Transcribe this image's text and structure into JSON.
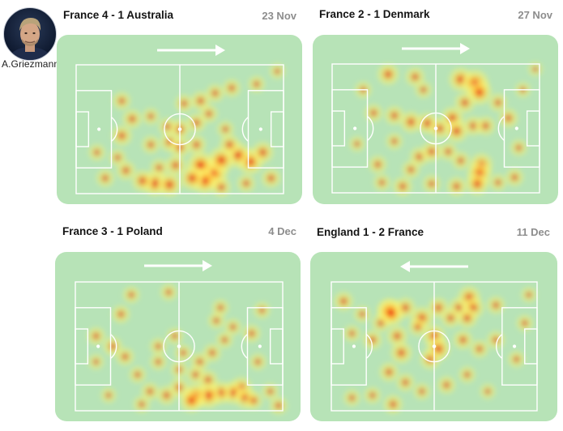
{
  "player": {
    "name": "A.Griezmann",
    "icon": "player-photo"
  },
  "colors": {
    "pitch": "#b7e3b7",
    "lines": "#ffffff",
    "heat_low": "#fff36a",
    "heat_mid": "#ffae2a",
    "heat_high": "#e8200e"
  },
  "matches": [
    {
      "title": "France 4 - 1 Australia",
      "date": "23 Nov",
      "attack_direction": "right",
      "heat": [
        [
          0.52,
          0.3,
          0.35
        ],
        [
          0.6,
          0.28,
          0.4
        ],
        [
          0.67,
          0.22,
          0.35
        ],
        [
          0.75,
          0.18,
          0.35
        ],
        [
          0.87,
          0.15,
          0.3
        ],
        [
          0.97,
          0.05,
          0.25
        ],
        [
          0.5,
          0.5,
          0.45
        ],
        [
          0.58,
          0.45,
          0.4
        ],
        [
          0.64,
          0.38,
          0.35
        ],
        [
          0.44,
          0.48,
          0.35
        ],
        [
          0.45,
          0.6,
          0.4
        ],
        [
          0.36,
          0.62,
          0.35
        ],
        [
          0.22,
          0.55,
          0.45
        ],
        [
          0.27,
          0.42,
          0.4
        ],
        [
          0.22,
          0.28,
          0.35
        ],
        [
          0.36,
          0.4,
          0.3
        ],
        [
          0.84,
          0.75,
          0.7
        ],
        [
          0.78,
          0.7,
          0.65
        ],
        [
          0.66,
          0.84,
          0.85
        ],
        [
          0.6,
          0.78,
          0.75
        ],
        [
          0.7,
          0.74,
          0.7
        ],
        [
          0.62,
          0.9,
          0.7
        ],
        [
          0.56,
          0.88,
          0.6
        ],
        [
          0.48,
          0.78,
          0.45
        ],
        [
          0.4,
          0.8,
          0.35
        ],
        [
          0.38,
          0.92,
          0.65
        ],
        [
          0.45,
          0.93,
          0.6
        ],
        [
          0.32,
          0.9,
          0.5
        ],
        [
          0.24,
          0.82,
          0.4
        ],
        [
          0.14,
          0.88,
          0.35
        ],
        [
          0.9,
          0.68,
          0.5
        ],
        [
          0.94,
          0.88,
          0.4
        ],
        [
          0.82,
          0.92,
          0.35
        ],
        [
          0.1,
          0.68,
          0.3
        ],
        [
          0.2,
          0.72,
          0.3
        ],
        [
          0.74,
          0.62,
          0.45
        ],
        [
          0.7,
          0.95,
          0.4
        ],
        [
          0.58,
          0.62,
          0.4
        ],
        [
          0.5,
          0.64,
          0.45
        ],
        [
          0.72,
          0.5,
          0.3
        ]
      ]
    },
    {
      "title": "France 2 - 1 Denmark",
      "date": "27 Nov",
      "attack_direction": "right",
      "heat": [
        [
          0.27,
          0.08,
          0.5
        ],
        [
          0.4,
          0.1,
          0.4
        ],
        [
          0.62,
          0.12,
          0.6
        ],
        [
          0.69,
          0.15,
          0.75
        ],
        [
          0.71,
          0.22,
          0.65
        ],
        [
          0.64,
          0.3,
          0.45
        ],
        [
          0.15,
          0.2,
          0.3
        ],
        [
          0.2,
          0.38,
          0.35
        ],
        [
          0.3,
          0.4,
          0.4
        ],
        [
          0.38,
          0.45,
          0.5
        ],
        [
          0.46,
          0.46,
          0.5
        ],
        [
          0.52,
          0.5,
          0.45
        ],
        [
          0.58,
          0.42,
          0.55
        ],
        [
          0.6,
          0.52,
          0.55
        ],
        [
          0.68,
          0.48,
          0.4
        ],
        [
          0.8,
          0.3,
          0.35
        ],
        [
          0.85,
          0.42,
          0.4
        ],
        [
          0.9,
          0.65,
          0.3
        ],
        [
          0.74,
          0.48,
          0.4
        ],
        [
          0.3,
          0.6,
          0.3
        ],
        [
          0.22,
          0.78,
          0.35
        ],
        [
          0.42,
          0.72,
          0.4
        ],
        [
          0.38,
          0.82,
          0.35
        ],
        [
          0.48,
          0.68,
          0.45
        ],
        [
          0.56,
          0.68,
          0.35
        ],
        [
          0.62,
          0.75,
          0.35
        ],
        [
          0.72,
          0.78,
          0.55
        ],
        [
          0.71,
          0.85,
          0.65
        ],
        [
          0.7,
          0.93,
          0.55
        ],
        [
          0.6,
          0.95,
          0.4
        ],
        [
          0.48,
          0.93,
          0.35
        ],
        [
          0.34,
          0.95,
          0.4
        ],
        [
          0.24,
          0.92,
          0.3
        ],
        [
          0.88,
          0.88,
          0.35
        ],
        [
          0.8,
          0.92,
          0.3
        ],
        [
          0.12,
          0.62,
          0.25
        ],
        [
          0.44,
          0.2,
          0.3
        ],
        [
          0.98,
          0.04,
          0.2
        ],
        [
          0.92,
          0.2,
          0.25
        ]
      ]
    },
    {
      "title": "France 3 - 1 Poland",
      "date": "4 Dec",
      "attack_direction": "right",
      "heat": [
        [
          0.22,
          0.25,
          0.35
        ],
        [
          0.27,
          0.1,
          0.3
        ],
        [
          0.45,
          0.08,
          0.3
        ],
        [
          0.1,
          0.42,
          0.35
        ],
        [
          0.18,
          0.5,
          0.4
        ],
        [
          0.24,
          0.58,
          0.35
        ],
        [
          0.3,
          0.72,
          0.3
        ],
        [
          0.4,
          0.5,
          0.3
        ],
        [
          0.48,
          0.42,
          0.3
        ],
        [
          0.52,
          0.55,
          0.3
        ],
        [
          0.6,
          0.62,
          0.35
        ],
        [
          0.66,
          0.55,
          0.35
        ],
        [
          0.72,
          0.45,
          0.3
        ],
        [
          0.68,
          0.3,
          0.3
        ],
        [
          0.7,
          0.2,
          0.3
        ],
        [
          0.76,
          0.35,
          0.3
        ],
        [
          0.85,
          0.4,
          0.35
        ],
        [
          0.9,
          0.22,
          0.3
        ],
        [
          0.88,
          0.62,
          0.3
        ],
        [
          0.94,
          0.85,
          0.3
        ],
        [
          0.98,
          0.96,
          0.35
        ],
        [
          0.8,
          0.82,
          0.5
        ],
        [
          0.76,
          0.86,
          0.55
        ],
        [
          0.7,
          0.86,
          0.55
        ],
        [
          0.64,
          0.88,
          0.7
        ],
        [
          0.58,
          0.88,
          0.6
        ],
        [
          0.56,
          0.92,
          0.6
        ],
        [
          0.5,
          0.82,
          0.4
        ],
        [
          0.44,
          0.88,
          0.4
        ],
        [
          0.36,
          0.85,
          0.35
        ],
        [
          0.32,
          0.95,
          0.3
        ],
        [
          0.16,
          0.88,
          0.25
        ],
        [
          0.58,
          0.72,
          0.35
        ],
        [
          0.64,
          0.76,
          0.4
        ],
        [
          0.82,
          0.9,
          0.5
        ],
        [
          0.86,
          0.92,
          0.35
        ],
        [
          0.5,
          0.68,
          0.3
        ],
        [
          0.4,
          0.62,
          0.3
        ],
        [
          0.1,
          0.62,
          0.25
        ]
      ]
    },
    {
      "title": "England 1 - 2 France",
      "date": "11 Dec",
      "attack_direction": "left",
      "heat": [
        [
          0.06,
          0.15,
          0.4
        ],
        [
          0.15,
          0.25,
          0.3
        ],
        [
          0.28,
          0.22,
          0.6
        ],
        [
          0.29,
          0.24,
          0.75
        ],
        [
          0.36,
          0.2,
          0.45
        ],
        [
          0.44,
          0.28,
          0.55
        ],
        [
          0.52,
          0.2,
          0.45
        ],
        [
          0.62,
          0.2,
          0.45
        ],
        [
          0.67,
          0.12,
          0.55
        ],
        [
          0.69,
          0.2,
          0.5
        ],
        [
          0.66,
          0.28,
          0.45
        ],
        [
          0.58,
          0.28,
          0.4
        ],
        [
          0.8,
          0.18,
          0.35
        ],
        [
          0.94,
          0.32,
          0.3
        ],
        [
          0.1,
          0.4,
          0.3
        ],
        [
          0.2,
          0.45,
          0.4
        ],
        [
          0.32,
          0.42,
          0.45
        ],
        [
          0.34,
          0.55,
          0.5
        ],
        [
          0.5,
          0.42,
          0.55
        ],
        [
          0.52,
          0.52,
          0.6
        ],
        [
          0.48,
          0.6,
          0.45
        ],
        [
          0.64,
          0.45,
          0.4
        ],
        [
          0.72,
          0.52,
          0.35
        ],
        [
          0.8,
          0.45,
          0.35
        ],
        [
          0.9,
          0.6,
          0.3
        ],
        [
          0.28,
          0.7,
          0.4
        ],
        [
          0.36,
          0.78,
          0.35
        ],
        [
          0.2,
          0.88,
          0.3
        ],
        [
          0.3,
          0.95,
          0.4
        ],
        [
          0.44,
          0.85,
          0.3
        ],
        [
          0.56,
          0.8,
          0.35
        ],
        [
          0.66,
          0.72,
          0.3
        ],
        [
          0.76,
          0.85,
          0.25
        ],
        [
          0.1,
          0.9,
          0.3
        ],
        [
          0.42,
          0.35,
          0.35
        ],
        [
          0.24,
          0.32,
          0.35
        ],
        [
          0.96,
          0.1,
          0.25
        ]
      ]
    }
  ]
}
